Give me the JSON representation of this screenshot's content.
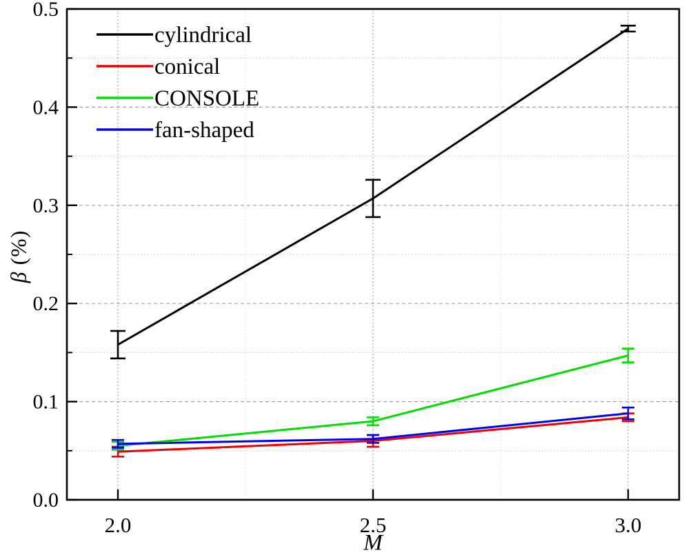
{
  "chart_data": {
    "type": "line",
    "title": "",
    "xlabel": "M",
    "ylabel": "β (%)",
    "ylabel_symbol": "β",
    "ylabel_units": " (%)",
    "x": [
      2.0,
      2.5,
      3.0
    ],
    "xlim": [
      1.9,
      3.1
    ],
    "ylim": [
      0.0,
      0.5
    ],
    "x_major_ticks": [
      2.0,
      2.5,
      3.0
    ],
    "x_tick_labels": [
      "2.0",
      "2.5",
      "3.0"
    ],
    "x_minor_gridlines": [
      2.25,
      2.75
    ],
    "y_major_ticks": [
      0.0,
      0.1,
      0.2,
      0.3,
      0.4,
      0.5
    ],
    "y_tick_labels": [
      "0.0",
      "0.1",
      "0.2",
      "0.3",
      "0.4",
      "0.5"
    ],
    "y_minor_ticks": [
      0.05,
      0.15,
      0.25,
      0.35,
      0.45
    ],
    "grid": true,
    "legend_position": "top-left",
    "series": [
      {
        "name": "cylindrical",
        "color": "#000000",
        "values": [
          0.158,
          0.307,
          0.48
        ],
        "errors": [
          0.014,
          0.019,
          0.003
        ]
      },
      {
        "name": "conical",
        "color": "#ee0000",
        "values": [
          0.049,
          0.06,
          0.084
        ],
        "errors": [
          0.005,
          0.006,
          0.004
        ]
      },
      {
        "name": "CONSOLE",
        "color": "#00dd00",
        "values": [
          0.055,
          0.08,
          0.147
        ],
        "errors": [
          0.004,
          0.004,
          0.007
        ]
      },
      {
        "name": "fan-shaped",
        "color": "#0000ee",
        "values": [
          0.057,
          0.062,
          0.088
        ],
        "errors": [
          0.004,
          0.004,
          0.006
        ]
      }
    ],
    "style": {
      "axis_color": "#000000",
      "text_color": "#000000",
      "background_color": "#ffffff",
      "major_grid_color": "#a0a0a0",
      "minor_grid_color": "#c2c2c2",
      "x_major_grid_color": "#a8a8a8",
      "x_minor_grid_color": "#d8d8d8"
    }
  }
}
